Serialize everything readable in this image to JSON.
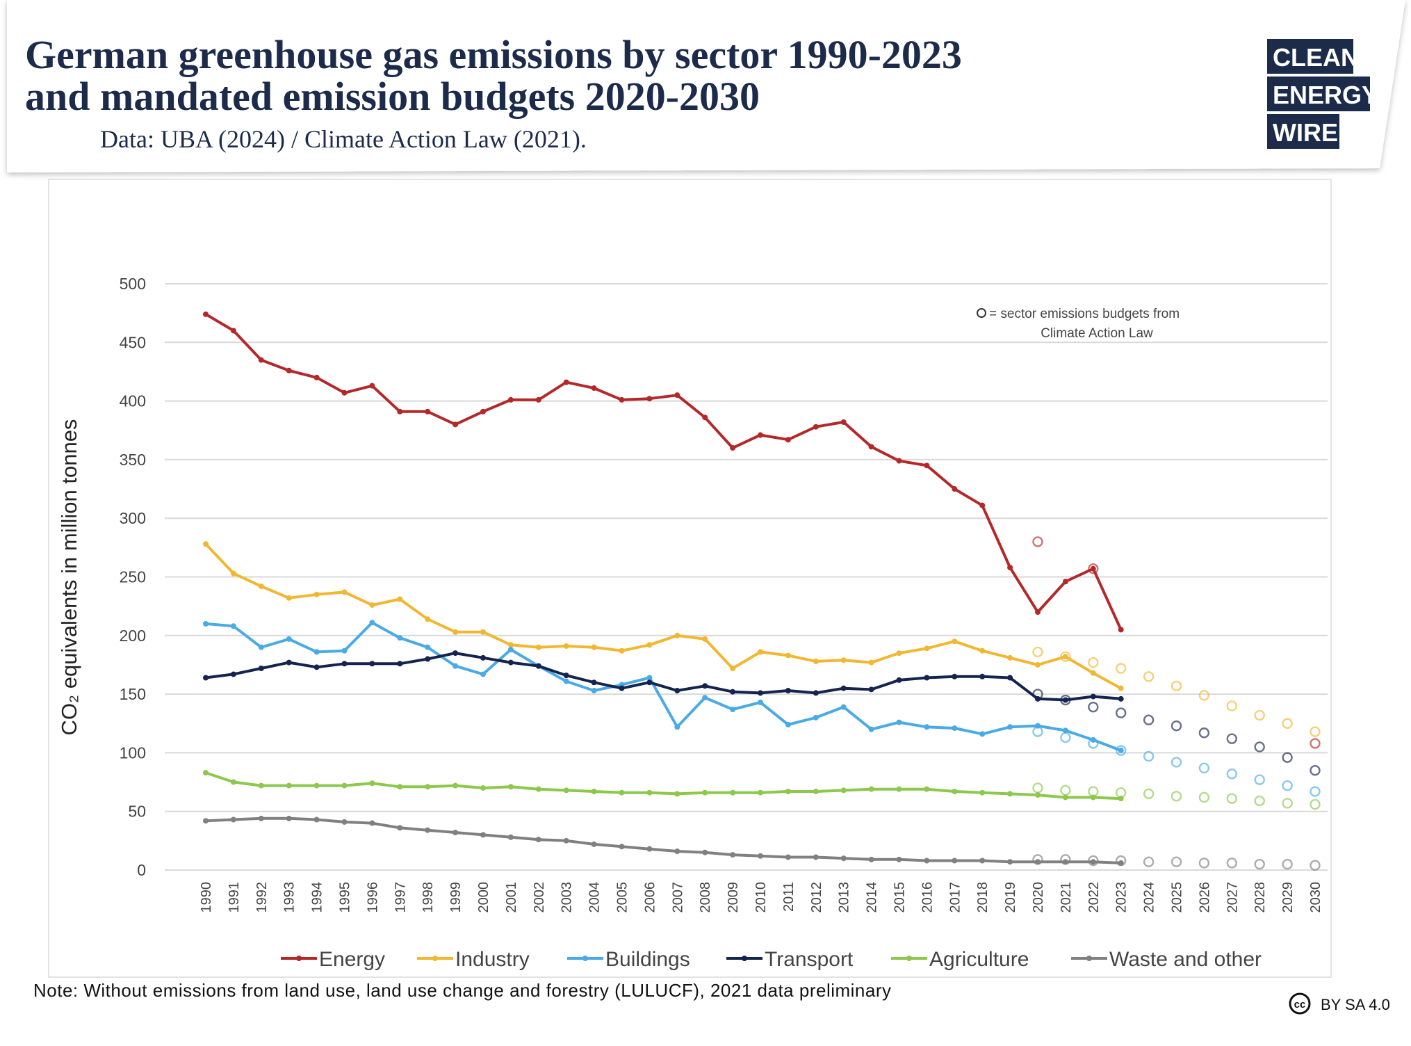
{
  "chart_data": {
    "type": "line",
    "title": [
      "German greenhouse gas emissions by sector 1990-2023",
      "and mandated emission budgets 2020-2030"
    ],
    "subtitle": "Data: UBA (2024) / Climate Action Law (2021).",
    "logo": [
      "CLEAN",
      "ENERGY",
      "WIRE"
    ],
    "y_label": "CO₂ equivalents in million tonnes",
    "annotation": [
      "= sector emissions budgets from",
      "Climate Action Law"
    ],
    "note": "Note: Without emissions from land use, land use change and forestry (LULUCF), 2021 data preliminary",
    "license": "BY SA 4.0",
    "categories": [
      "1990",
      "1991",
      "1992",
      "1993",
      "1994",
      "1995",
      "1996",
      "1997",
      "1998",
      "1999",
      "2000",
      "2001",
      "2002",
      "2003",
      "2004",
      "2005",
      "2006",
      "2007",
      "2008",
      "2009",
      "2010",
      "2011",
      "2012",
      "2013",
      "2014",
      "2015",
      "2016",
      "2017",
      "2018",
      "2019",
      "2020",
      "2021",
      "2022",
      "2023",
      "2024",
      "2025",
      "2026",
      "2027",
      "2028",
      "2029",
      "2030"
    ],
    "ylim": [
      0,
      500
    ],
    "yticks": [
      0,
      50,
      100,
      150,
      200,
      250,
      300,
      350,
      400,
      450,
      500
    ],
    "grid": true,
    "series": [
      {
        "name": "Energy",
        "color": "#b5282a",
        "values": [
          474,
          460,
          435,
          426,
          420,
          407,
          413,
          391,
          391,
          380,
          391,
          401,
          401,
          416,
          411,
          401,
          402,
          405,
          386,
          360,
          371,
          367,
          378,
          382,
          361,
          349,
          345,
          325,
          311,
          258,
          220,
          246,
          257,
          205,
          null,
          null,
          null,
          null,
          null,
          null,
          null
        ],
        "budgets": [
          null,
          null,
          null,
          null,
          null,
          null,
          null,
          null,
          null,
          null,
          null,
          null,
          null,
          null,
          null,
          null,
          null,
          null,
          null,
          null,
          null,
          null,
          null,
          null,
          null,
          null,
          null,
          null,
          null,
          null,
          280,
          null,
          257,
          null,
          null,
          null,
          null,
          null,
          null,
          null,
          108
        ]
      },
      {
        "name": "Industry",
        "color": "#f2b731",
        "values": [
          278,
          253,
          242,
          232,
          235,
          237,
          226,
          231,
          214,
          203,
          203,
          192,
          190,
          191,
          190,
          187,
          192,
          200,
          197,
          172,
          186,
          183,
          178,
          179,
          177,
          185,
          189,
          195,
          187,
          181,
          175,
          182,
          168,
          155,
          null,
          null,
          null,
          null,
          null,
          null,
          null
        ],
        "budgets": [
          null,
          null,
          null,
          null,
          null,
          null,
          null,
          null,
          null,
          null,
          null,
          null,
          null,
          null,
          null,
          null,
          null,
          null,
          null,
          null,
          null,
          null,
          null,
          null,
          null,
          null,
          null,
          null,
          null,
          null,
          186,
          182,
          177,
          172,
          165,
          157,
          149,
          140,
          132,
          125,
          118
        ]
      },
      {
        "name": "Buildings",
        "color": "#4aaae6",
        "values": [
          210,
          208,
          190,
          197,
          186,
          187,
          211,
          198,
          190,
          174,
          167,
          188,
          174,
          161,
          153,
          158,
          164,
          122,
          147,
          137,
          143,
          124,
          130,
          139,
          120,
          126,
          122,
          121,
          116,
          122,
          123,
          119,
          111,
          102,
          null,
          null,
          null,
          null,
          null,
          null,
          null
        ],
        "budgets": [
          null,
          null,
          null,
          null,
          null,
          null,
          null,
          null,
          null,
          null,
          null,
          null,
          null,
          null,
          null,
          null,
          null,
          null,
          null,
          null,
          null,
          null,
          null,
          null,
          null,
          null,
          null,
          null,
          null,
          null,
          118,
          113,
          108,
          102,
          97,
          92,
          87,
          82,
          77,
          72,
          67
        ]
      },
      {
        "name": "Transport",
        "color": "#15244e",
        "values": [
          164,
          167,
          172,
          177,
          173,
          176,
          176,
          176,
          180,
          185,
          181,
          177,
          174,
          166,
          160,
          155,
          160,
          153,
          157,
          152,
          151,
          153,
          151,
          155,
          154,
          162,
          164,
          165,
          165,
          164,
          146,
          145,
          148,
          146,
          null,
          null,
          null,
          null,
          null,
          null,
          null
        ],
        "budgets": [
          null,
          null,
          null,
          null,
          null,
          null,
          null,
          null,
          null,
          null,
          null,
          null,
          null,
          null,
          null,
          null,
          null,
          null,
          null,
          null,
          null,
          null,
          null,
          null,
          null,
          null,
          null,
          null,
          null,
          null,
          150,
          145,
          139,
          134,
          128,
          123,
          117,
          112,
          105,
          96,
          85
        ]
      },
      {
        "name": "Agriculture",
        "color": "#8cc84b",
        "values": [
          83,
          75,
          72,
          72,
          72,
          72,
          74,
          71,
          71,
          72,
          70,
          71,
          69,
          68,
          67,
          66,
          66,
          65,
          66,
          66,
          66,
          67,
          67,
          68,
          69,
          69,
          69,
          67,
          66,
          65,
          64,
          62,
          62,
          61,
          null,
          null,
          null,
          null,
          null,
          null,
          null
        ],
        "budgets": [
          null,
          null,
          null,
          null,
          null,
          null,
          null,
          null,
          null,
          null,
          null,
          null,
          null,
          null,
          null,
          null,
          null,
          null,
          null,
          null,
          null,
          null,
          null,
          null,
          null,
          null,
          null,
          null,
          null,
          null,
          70,
          68,
          67,
          66,
          65,
          63,
          62,
          61,
          59,
          57,
          56
        ]
      },
      {
        "name": "Waste and other",
        "color": "#808080",
        "values": [
          42,
          43,
          44,
          44,
          43,
          41,
          40,
          36,
          34,
          32,
          30,
          28,
          26,
          25,
          22,
          20,
          18,
          16,
          15,
          13,
          12,
          11,
          11,
          10,
          9,
          9,
          8,
          8,
          8,
          7,
          7,
          7,
          7,
          6,
          null,
          null,
          null,
          null,
          null,
          null,
          null
        ],
        "budgets": [
          null,
          null,
          null,
          null,
          null,
          null,
          null,
          null,
          null,
          null,
          null,
          null,
          null,
          null,
          null,
          null,
          null,
          null,
          null,
          null,
          null,
          null,
          null,
          null,
          null,
          null,
          null,
          null,
          null,
          null,
          9,
          9,
          8,
          8,
          7,
          7,
          6,
          6,
          5,
          5,
          4
        ]
      }
    ]
  }
}
